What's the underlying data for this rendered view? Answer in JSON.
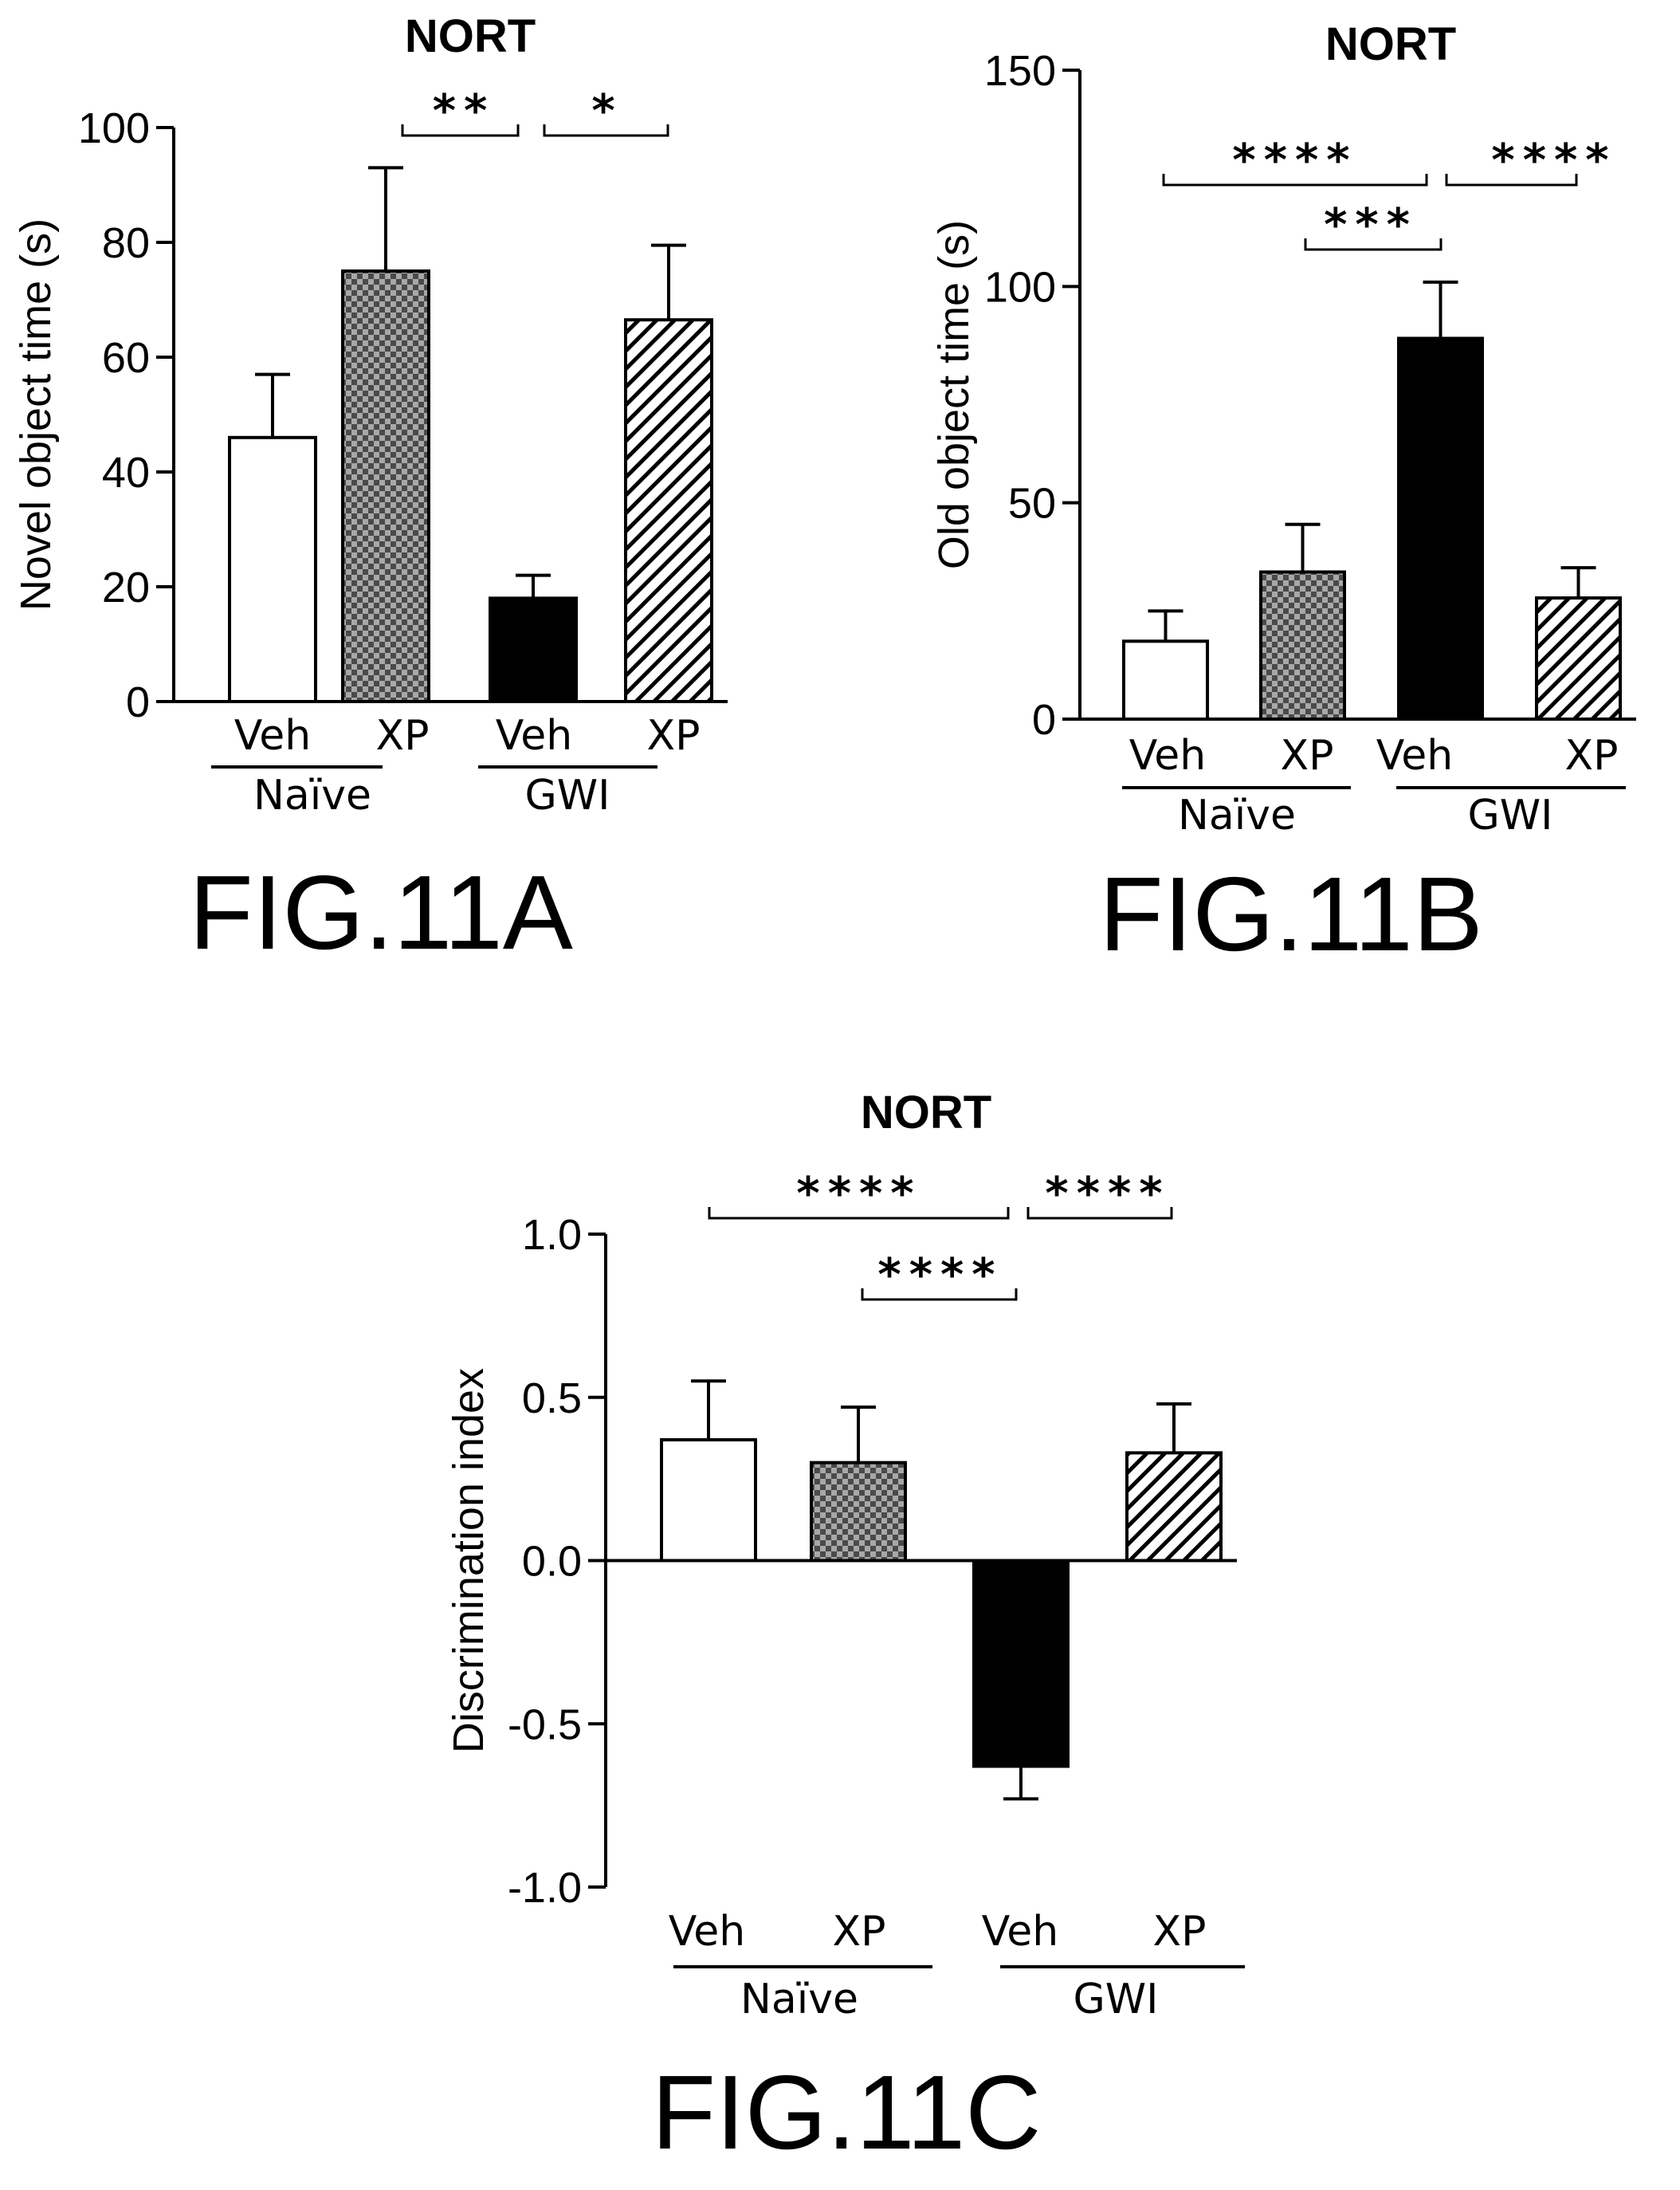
{
  "chart_data": [
    {
      "type": "bar",
      "title": "NORT",
      "ylabel": "Novel object time (s)",
      "ylim": [
        0,
        100
      ],
      "yticks": [
        "0",
        "20",
        "40",
        "60",
        "80",
        "100"
      ],
      "categories": [
        "Veh",
        "XP",
        "Veh",
        "XP"
      ],
      "groups": [
        {
          "name": "Naïve",
          "span": [
            0,
            1
          ]
        },
        {
          "name": "GWI",
          "span": [
            2,
            3
          ]
        }
      ],
      "values": [
        46,
        75,
        18,
        66.5
      ],
      "errors": [
        11,
        18,
        4,
        13
      ],
      "fills": [
        "white",
        "checker",
        "black",
        "hatch"
      ],
      "significance": [
        {
          "from": 1,
          "to": 2,
          "label": "**"
        },
        {
          "from": 2,
          "to": 3,
          "label": "*"
        }
      ],
      "figure_label": "FIG.11A"
    },
    {
      "type": "bar",
      "title": "NORT",
      "ylabel": "Old object time (s)",
      "ylim": [
        0,
        150
      ],
      "yticks": [
        "0",
        "50",
        "100",
        "150"
      ],
      "categories": [
        "Veh",
        "XP",
        "Veh",
        "XP"
      ],
      "groups": [
        {
          "name": "Naïve",
          "span": [
            0,
            1
          ]
        },
        {
          "name": "GWI",
          "span": [
            2,
            3
          ]
        }
      ],
      "values": [
        18,
        34,
        88,
        28
      ],
      "errors": [
        7,
        11,
        13,
        7
      ],
      "fills": [
        "white",
        "checker",
        "black",
        "hatch"
      ],
      "significance": [
        {
          "from": 0,
          "to": 2,
          "label": "****"
        },
        {
          "from": 2,
          "to": 3,
          "label": "****"
        },
        {
          "from": 1,
          "to": 2,
          "label": "***"
        }
      ],
      "figure_label": "FIG.11B"
    },
    {
      "type": "bar",
      "title": "NORT",
      "ylabel": "Discrimination index",
      "ylim": [
        -1.0,
        1.0
      ],
      "yticks": [
        "-1.0",
        "-0.5",
        "0.0",
        "0.5",
        "1.0"
      ],
      "categories": [
        "Veh",
        "XP",
        "Veh",
        "XP"
      ],
      "groups": [
        {
          "name": "Naïve",
          "span": [
            0,
            1
          ]
        },
        {
          "name": "GWI",
          "span": [
            2,
            3
          ]
        }
      ],
      "values": [
        0.37,
        0.3,
        -0.63,
        0.33
      ],
      "errors": [
        0.18,
        0.17,
        0.1,
        0.15
      ],
      "fills": [
        "white",
        "checker",
        "black",
        "hatch"
      ],
      "significance": [
        {
          "from": 0,
          "to": 2,
          "label": "****"
        },
        {
          "from": 2,
          "to": 3,
          "label": "****"
        },
        {
          "from": 1,
          "to": 2,
          "label": "****"
        }
      ],
      "figure_label": "FIG.11C"
    }
  ]
}
